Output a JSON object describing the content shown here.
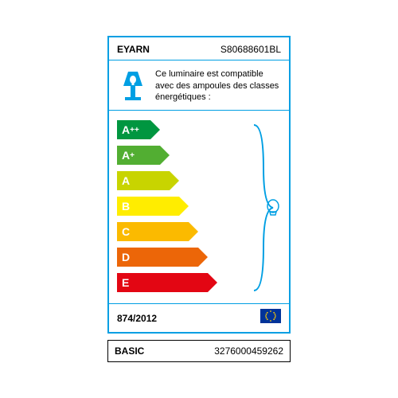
{
  "header": {
    "brand": "EYARN",
    "model": "S80688601BL"
  },
  "info": {
    "text": "Ce luminaire est compatible avec des ampoules des classes énergétiques :"
  },
  "energy": {
    "type": "energy-rating",
    "bars": [
      {
        "label": "A++",
        "width": 42,
        "color": "#009640"
      },
      {
        "label": "A+",
        "width": 54,
        "color": "#52ae32"
      },
      {
        "label": "A",
        "width": 66,
        "color": "#c8d400"
      },
      {
        "label": "B",
        "width": 78,
        "color": "#ffed00"
      },
      {
        "label": "C",
        "width": 90,
        "color": "#fbba00"
      },
      {
        "label": "D",
        "width": 102,
        "color": "#ec6608"
      },
      {
        "label": "E",
        "width": 114,
        "color": "#e30613"
      }
    ],
    "bracket_color": "#009fe3",
    "bulb_icon_color": "#009fe3"
  },
  "footer": {
    "regulation": "874/2012"
  },
  "bottom": {
    "category": "BASIC",
    "sku": "3276000459262"
  },
  "colors": {
    "border": "#009fe3",
    "text": "#000000",
    "background": "#ffffff",
    "eu_flag_bg": "#003399",
    "eu_flag_star": "#ffcc00"
  }
}
